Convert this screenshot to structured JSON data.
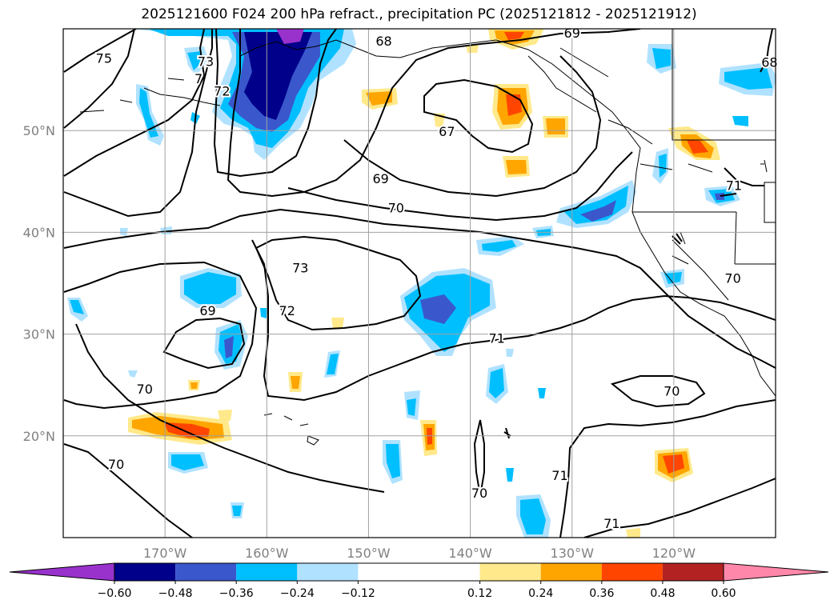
{
  "title": "2025121600 F024 200 hPa refract., precipitation PC (2025121812 - 2025121912)",
  "map": {
    "lon_range": [
      -180,
      -110
    ],
    "lat_range": [
      10,
      60
    ],
    "lon_ticks": [
      {
        "value": -170,
        "label": "170°W"
      },
      {
        "value": -160,
        "label": "160°W"
      },
      {
        "value": -150,
        "label": "150°W"
      },
      {
        "value": -140,
        "label": "140°W"
      },
      {
        "value": -130,
        "label": "130°W"
      },
      {
        "value": -120,
        "label": "120°W"
      }
    ],
    "lat_ticks": [
      {
        "value": 20,
        "label": "20°N"
      },
      {
        "value": 30,
        "label": "30°N"
      },
      {
        "value": 40,
        "label": "40°N"
      },
      {
        "value": 50,
        "label": "50°N"
      }
    ],
    "grid": true,
    "contour_labels": [
      {
        "text": "75",
        "lon": -176,
        "lat": 57
      },
      {
        "text": "73",
        "lon": -166,
        "lat": 56.7
      },
      {
        "text": "7",
        "lon": -166.7,
        "lat": 55
      },
      {
        "text": "72",
        "lon": -164.4,
        "lat": 53.8
      },
      {
        "text": "68",
        "lon": -148.5,
        "lat": 58.7
      },
      {
        "text": "69",
        "lon": -130,
        "lat": 59.5
      },
      {
        "text": "67",
        "lon": -142.3,
        "lat": 49.8
      },
      {
        "text": "69",
        "lon": -148.8,
        "lat": 45.2
      },
      {
        "text": "70",
        "lon": -147.3,
        "lat": 42.3
      },
      {
        "text": "73",
        "lon": -156.7,
        "lat": 36.4
      },
      {
        "text": "72",
        "lon": -158,
        "lat": 32.2
      },
      {
        "text": "69",
        "lon": -165.8,
        "lat": 32.2
      },
      {
        "text": "71",
        "lon": -137.4,
        "lat": 29.5
      },
      {
        "text": "70",
        "lon": -172,
        "lat": 24.5
      },
      {
        "text": "70",
        "lon": -174.8,
        "lat": 17.1
      },
      {
        "text": "70",
        "lon": -139.1,
        "lat": 14.3
      },
      {
        "text": "70",
        "lon": -120.2,
        "lat": 24.3
      },
      {
        "text": "71",
        "lon": -131.2,
        "lat": 16
      },
      {
        "text": "71",
        "lon": -126.1,
        "lat": 11.3
      },
      {
        "text": "70",
        "lon": -114.2,
        "lat": 35.4
      },
      {
        "text": "71",
        "lon": -114.1,
        "lat": 44.5
      },
      {
        "text": "68",
        "lon": -110.6,
        "lat": 56.6
      }
    ]
  },
  "colorbar": {
    "boundaries": [
      -0.6,
      -0.48,
      -0.36,
      -0.24,
      -0.12,
      0.12,
      0.24,
      0.36,
      0.48,
      0.6
    ],
    "labels": [
      "−0.60",
      "−0.48",
      "−0.36",
      "−0.24",
      "−0.12",
      "0.12",
      "0.24",
      "0.36",
      "0.48",
      "0.60"
    ],
    "under_color": "#9932cc",
    "over_color": "#ff88aa",
    "colors": [
      "#00008b",
      "#3a58cc",
      "#00bfff",
      "#b0e2ff",
      "#ffffff",
      "#ffe98a",
      "#ffa500",
      "#ff4500",
      "#b22222"
    ]
  },
  "shading_colors": {
    "light_blue": "#b0e2ff",
    "blue": "#00bfff",
    "mid_blue": "#3a58cc",
    "dark_blue": "#00008b",
    "purple": "#9932cc",
    "yellow": "#ffe98a",
    "orange": "#ffa500",
    "red": "#ff4500"
  }
}
